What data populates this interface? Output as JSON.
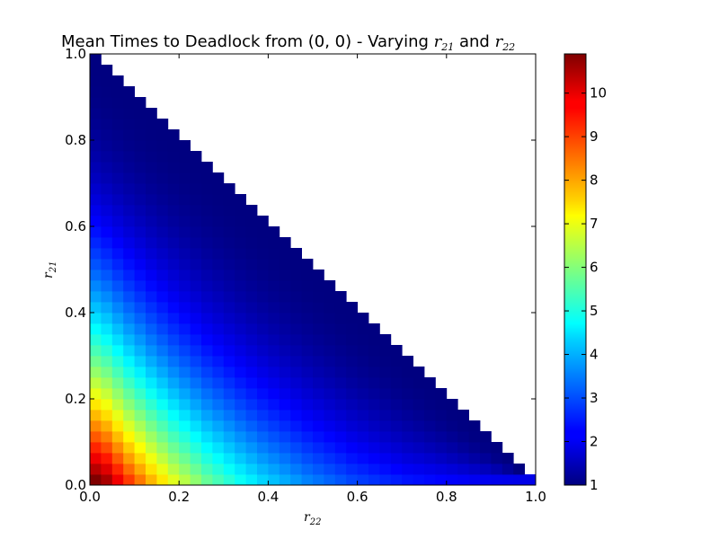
{
  "chart_data": {
    "type": "heatmap",
    "title": {
      "prefix": "Mean Times to Deadlock from (0, 0) - Varying ",
      "var1_base": "r",
      "var1_sub": "21",
      "mid": " and ",
      "var2_base": "r",
      "var2_sub": "22"
    },
    "xlabel": {
      "base": "r",
      "sub": "22"
    },
    "ylabel": {
      "base": "r",
      "sub": "21"
    },
    "xlim": [
      0,
      1
    ],
    "ylim": [
      0,
      1
    ],
    "x_ticks": [
      "0.0",
      "0.2",
      "0.4",
      "0.6",
      "0.8",
      "1.0"
    ],
    "y_ticks": [
      "0.0",
      "0.2",
      "0.4",
      "0.6",
      "0.8",
      "1.0"
    ],
    "colorbar": {
      "colormap": "jet",
      "min": 1,
      "max": 10.9,
      "ticks": [
        "1",
        "2",
        "3",
        "4",
        "5",
        "6",
        "7",
        "8",
        "9",
        "10"
      ]
    },
    "grid": {
      "n": 40,
      "cell_size": 0.025,
      "valid_region": "r21 + r22 <= 1",
      "corner_values": {
        "r22=0,r21=0": 10.9,
        "r22=1,r21=0": 2.0,
        "r22=0,r21=1": 1.0
      },
      "edge_values_r21_0": [
        10.9,
        10.5,
        9.8,
        9.1,
        8.5,
        7.9,
        7.4,
        6.9,
        6.5,
        6.1,
        5.7,
        5.4,
        5.1,
        4.8,
        4.55,
        4.3,
        4.1,
        3.9,
        3.7,
        3.5,
        3.35,
        3.2,
        3.05,
        2.9,
        2.8,
        2.7,
        2.6,
        2.5,
        2.4,
        2.35,
        2.3,
        2.25,
        2.2,
        2.15,
        2.1,
        2.08,
        2.05,
        2.03,
        2.01,
        2.0
      ]
    }
  }
}
